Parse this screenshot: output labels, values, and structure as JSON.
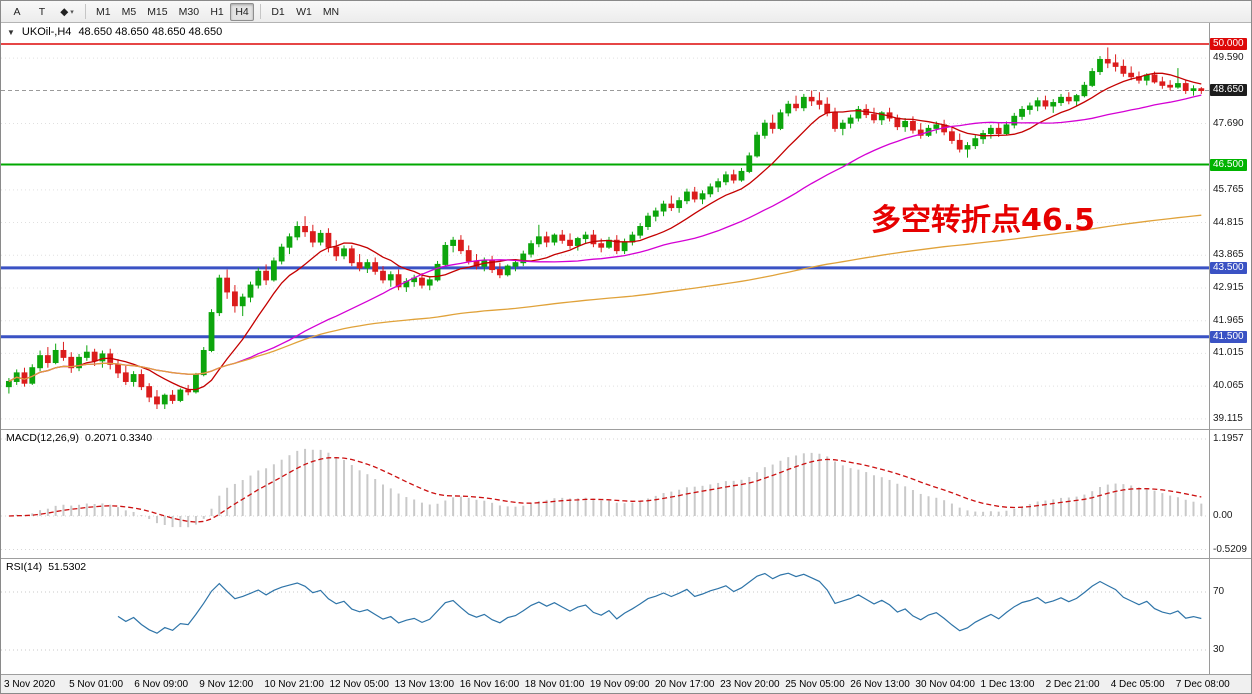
{
  "toolbar": {
    "tools": [
      {
        "label": "A"
      },
      {
        "label": "T"
      },
      {
        "label": "◆"
      }
    ],
    "dropdown_icon": "▾",
    "timeframes": [
      "M1",
      "M5",
      "M15",
      "M30",
      "H1",
      "H4",
      "D1",
      "W1",
      "MN"
    ],
    "active_timeframe": "H4"
  },
  "chart": {
    "collapse_icon": "▼",
    "title": "UKOil-,H4",
    "ohlc_text": "48.650 48.650 48.650 48.650",
    "annotation": {
      "text": "多空转折点46.5",
      "color": "#e60000"
    }
  },
  "chart_data": {
    "type": "candlestick",
    "symbol": "UKOil-",
    "timeframe": "H4",
    "colors": {
      "up": "#0da50d",
      "down": "#db1c1c",
      "grid": "#e0e0e0",
      "price_line": "#9a9a9a"
    },
    "current_price": {
      "value": 48.65,
      "label": "48.650"
    },
    "levels": [
      {
        "value": 50.0,
        "label": "50.000",
        "color": "#dd0808",
        "width": 1.5
      },
      {
        "value": 46.5,
        "label": "46.500",
        "color": "#00a800",
        "width": 2
      },
      {
        "value": 43.5,
        "label": "43.500",
        "color": "#3a52c4",
        "width": 3
      },
      {
        "value": 41.5,
        "label": "41.500",
        "color": "#3a52c4",
        "width": 3
      }
    ],
    "price_axis": [
      {
        "label": "50.000",
        "value": 50.0,
        "type": "red"
      },
      {
        "label": "49.590",
        "value": 49.59,
        "type": "tick"
      },
      {
        "label": "48.650",
        "value": 48.65,
        "type": "price"
      },
      {
        "label": "47.690",
        "value": 47.69,
        "type": "tick"
      },
      {
        "label": "46.500",
        "value": 46.5,
        "type": "green"
      },
      {
        "label": "45.765",
        "value": 45.765,
        "type": "tick"
      },
      {
        "label": "44.815",
        "value": 44.815,
        "type": "tick"
      },
      {
        "label": "43.865",
        "value": 43.865,
        "type": "tick"
      },
      {
        "label": "43.500",
        "value": 43.5,
        "type": "blue"
      },
      {
        "label": "42.915",
        "value": 42.915,
        "type": "tick"
      },
      {
        "label": "41.965",
        "value": 41.965,
        "type": "tick"
      },
      {
        "label": "41.500",
        "value": 41.5,
        "type": "blue"
      },
      {
        "label": "41.015",
        "value": 41.015,
        "type": "tick"
      },
      {
        "label": "40.065",
        "value": 40.065,
        "type": "tick"
      },
      {
        "label": "39.115",
        "value": 39.115,
        "type": "tick"
      }
    ],
    "moving_averages": [
      {
        "period": 10,
        "color": "#c40000"
      },
      {
        "period": 30,
        "color": "#d400d4"
      },
      {
        "period": 999,
        "color": "#e0a23a"
      }
    ],
    "indicators": {
      "macd": {
        "label": "MACD(12,26,9)",
        "values_text": "0.2071 0.3340",
        "fast": 12,
        "slow": 26,
        "signal": 9,
        "histogram_color": "#c9c9c9",
        "signal_color": "#cc1111",
        "axis": [
          {
            "label": "1.1957",
            "value": 1.1957
          },
          {
            "label": "0.00",
            "value": 0
          },
          {
            "label": "-0.5209",
            "value": -0.5209
          }
        ]
      },
      "rsi": {
        "label": "RSI(14)",
        "value_text": "51.5302",
        "period": 14,
        "line_color": "#2e74a8",
        "axis": [
          {
            "label": "70",
            "value": 70
          },
          {
            "label": "30",
            "value": 30
          }
        ]
      }
    },
    "time_axis": [
      "3 Nov 2020",
      "5 Nov 01:00",
      "6 Nov 09:00",
      "9 Nov 12:00",
      "10 Nov 21:00",
      "12 Nov 05:00",
      "13 Nov 13:00",
      "16 Nov 16:00",
      "18 Nov 01:00",
      "19 Nov 09:00",
      "20 Nov 17:00",
      "23 Nov 20:00",
      "25 Nov 05:00",
      "26 Nov 13:00",
      "30 Nov 04:00",
      "1 Dec 13:00",
      "2 Dec 21:00",
      "4 Dec 05:00",
      "7 Dec 08:00"
    ],
    "candles": [
      [
        40.05,
        40.3,
        39.85,
        40.2
      ],
      [
        40.2,
        40.55,
        40.1,
        40.45
      ],
      [
        40.45,
        40.6,
        40.05,
        40.15
      ],
      [
        40.15,
        40.7,
        40.1,
        40.6
      ],
      [
        40.6,
        41.1,
        40.5,
        40.95
      ],
      [
        40.95,
        41.2,
        40.6,
        40.75
      ],
      [
        40.75,
        41.3,
        40.7,
        41.1
      ],
      [
        41.1,
        41.35,
        40.8,
        40.9
      ],
      [
        40.9,
        41.05,
        40.45,
        40.6
      ],
      [
        40.6,
        41.0,
        40.5,
        40.9
      ],
      [
        40.9,
        41.25,
        40.8,
        41.05
      ],
      [
        41.05,
        41.15,
        40.65,
        40.8
      ],
      [
        40.8,
        41.1,
        40.6,
        41.0
      ],
      [
        41.0,
        41.15,
        40.55,
        40.7
      ],
      [
        40.7,
        40.85,
        40.3,
        40.45
      ],
      [
        40.45,
        40.65,
        40.1,
        40.2
      ],
      [
        40.2,
        40.5,
        40.05,
        40.4
      ],
      [
        40.4,
        40.55,
        39.95,
        40.05
      ],
      [
        40.05,
        40.15,
        39.6,
        39.75
      ],
      [
        39.75,
        39.95,
        39.4,
        39.55
      ],
      [
        39.55,
        39.85,
        39.4,
        39.8
      ],
      [
        39.8,
        39.95,
        39.55,
        39.65
      ],
      [
        39.65,
        40.0,
        39.6,
        39.95
      ],
      [
        39.95,
        40.1,
        39.8,
        39.9
      ],
      [
        39.9,
        40.45,
        39.85,
        40.4
      ],
      [
        40.4,
        41.2,
        40.35,
        41.1
      ],
      [
        41.1,
        42.3,
        41.05,
        42.2
      ],
      [
        42.2,
        43.3,
        42.1,
        43.2
      ],
      [
        43.2,
        43.45,
        42.6,
        42.8
      ],
      [
        42.8,
        43.0,
        42.2,
        42.4
      ],
      [
        42.4,
        42.75,
        42.1,
        42.65
      ],
      [
        42.65,
        43.1,
        42.5,
        43.0
      ],
      [
        43.0,
        43.5,
        42.9,
        43.4
      ],
      [
        43.4,
        43.6,
        43.0,
        43.15
      ],
      [
        43.15,
        43.8,
        43.1,
        43.7
      ],
      [
        43.7,
        44.2,
        43.6,
        44.1
      ],
      [
        44.1,
        44.5,
        43.9,
        44.4
      ],
      [
        44.4,
        44.85,
        44.3,
        44.7
      ],
      [
        44.7,
        45.0,
        44.4,
        44.55
      ],
      [
        44.55,
        44.75,
        44.1,
        44.25
      ],
      [
        44.25,
        44.6,
        44.15,
        44.5
      ],
      [
        44.5,
        44.65,
        43.95,
        44.1
      ],
      [
        44.1,
        44.3,
        43.7,
        43.85
      ],
      [
        43.85,
        44.15,
        43.75,
        44.05
      ],
      [
        44.05,
        44.15,
        43.55,
        43.65
      ],
      [
        43.65,
        43.9,
        43.4,
        43.5
      ],
      [
        43.5,
        43.75,
        43.35,
        43.65
      ],
      [
        43.65,
        43.8,
        43.3,
        43.4
      ],
      [
        43.4,
        43.55,
        43.05,
        43.15
      ],
      [
        43.15,
        43.4,
        42.95,
        43.3
      ],
      [
        43.3,
        43.45,
        42.85,
        42.95
      ],
      [
        42.95,
        43.2,
        42.8,
        43.1
      ],
      [
        43.1,
        43.3,
        42.95,
        43.2
      ],
      [
        43.2,
        43.35,
        42.9,
        43.0
      ],
      [
        43.0,
        43.25,
        42.85,
        43.15
      ],
      [
        43.15,
        43.7,
        43.1,
        43.6
      ],
      [
        43.6,
        44.25,
        43.55,
        44.15
      ],
      [
        44.15,
        44.4,
        43.95,
        44.3
      ],
      [
        44.3,
        44.45,
        43.9,
        44.0
      ],
      [
        44.0,
        44.15,
        43.6,
        43.7
      ],
      [
        43.7,
        43.9,
        43.45,
        43.55
      ],
      [
        43.55,
        43.8,
        43.4,
        43.7
      ],
      [
        43.7,
        43.85,
        43.35,
        43.45
      ],
      [
        43.45,
        43.65,
        43.2,
        43.3
      ],
      [
        43.3,
        43.6,
        43.25,
        43.55
      ],
      [
        43.55,
        43.75,
        43.4,
        43.65
      ],
      [
        43.65,
        44.0,
        43.55,
        43.9
      ],
      [
        43.9,
        44.3,
        43.8,
        44.2
      ],
      [
        44.2,
        44.75,
        44.1,
        44.4
      ],
      [
        44.4,
        44.55,
        44.1,
        44.25
      ],
      [
        44.25,
        44.5,
        44.15,
        44.45
      ],
      [
        44.45,
        44.6,
        44.2,
        44.3
      ],
      [
        44.3,
        44.5,
        44.05,
        44.15
      ],
      [
        44.15,
        44.4,
        44.0,
        44.35
      ],
      [
        44.35,
        44.55,
        44.2,
        44.45
      ],
      [
        44.45,
        44.6,
        44.1,
        44.2
      ],
      [
        44.2,
        44.35,
        43.95,
        44.1
      ],
      [
        44.1,
        44.4,
        44.05,
        44.3
      ],
      [
        44.3,
        44.45,
        43.9,
        44.0
      ],
      [
        44.0,
        44.35,
        43.9,
        44.25
      ],
      [
        44.25,
        44.55,
        44.15,
        44.45
      ],
      [
        44.45,
        44.8,
        44.35,
        44.7
      ],
      [
        44.7,
        45.1,
        44.6,
        45.0
      ],
      [
        45.0,
        45.25,
        44.85,
        45.15
      ],
      [
        45.15,
        45.45,
        45.0,
        45.35
      ],
      [
        45.35,
        45.6,
        45.15,
        45.25
      ],
      [
        45.25,
        45.55,
        45.1,
        45.45
      ],
      [
        45.45,
        45.8,
        45.35,
        45.7
      ],
      [
        45.7,
        45.85,
        45.4,
        45.5
      ],
      [
        45.5,
        45.75,
        45.35,
        45.65
      ],
      [
        45.65,
        45.95,
        45.55,
        45.85
      ],
      [
        45.85,
        46.1,
        45.7,
        46.0
      ],
      [
        46.0,
        46.3,
        45.9,
        46.2
      ],
      [
        46.2,
        46.35,
        45.95,
        46.05
      ],
      [
        46.05,
        46.4,
        46.0,
        46.3
      ],
      [
        46.3,
        46.85,
        46.25,
        46.75
      ],
      [
        46.75,
        47.45,
        46.7,
        47.35
      ],
      [
        47.35,
        47.8,
        47.25,
        47.7
      ],
      [
        47.7,
        47.95,
        47.4,
        47.55
      ],
      [
        47.55,
        48.1,
        47.5,
        48.0
      ],
      [
        48.0,
        48.35,
        47.9,
        48.25
      ],
      [
        48.25,
        48.5,
        48.05,
        48.15
      ],
      [
        48.15,
        48.55,
        48.05,
        48.45
      ],
      [
        48.45,
        48.65,
        48.2,
        48.35
      ],
      [
        48.35,
        48.6,
        48.1,
        48.25
      ],
      [
        48.25,
        48.45,
        47.9,
        48.0
      ],
      [
        48.0,
        48.15,
        47.45,
        47.55
      ],
      [
        47.55,
        47.8,
        47.35,
        47.7
      ],
      [
        47.7,
        47.95,
        47.55,
        47.85
      ],
      [
        47.85,
        48.2,
        47.75,
        48.1
      ],
      [
        48.1,
        48.25,
        47.85,
        47.95
      ],
      [
        47.95,
        48.15,
        47.7,
        47.8
      ],
      [
        47.8,
        48.05,
        47.65,
        48.0
      ],
      [
        48.0,
        48.15,
        47.75,
        47.85
      ],
      [
        47.85,
        47.95,
        47.5,
        47.6
      ],
      [
        47.6,
        47.85,
        47.45,
        47.75
      ],
      [
        47.75,
        47.9,
        47.4,
        47.5
      ],
      [
        47.5,
        47.7,
        47.25,
        47.35
      ],
      [
        47.35,
        47.65,
        47.3,
        47.55
      ],
      [
        47.55,
        47.75,
        47.4,
        47.65
      ],
      [
        47.65,
        47.8,
        47.35,
        47.45
      ],
      [
        47.45,
        47.6,
        47.1,
        47.2
      ],
      [
        47.2,
        47.4,
        46.85,
        46.95
      ],
      [
        46.95,
        47.15,
        46.7,
        47.05
      ],
      [
        47.05,
        47.35,
        46.95,
        47.25
      ],
      [
        47.25,
        47.5,
        47.1,
        47.4
      ],
      [
        47.4,
        47.65,
        47.25,
        47.55
      ],
      [
        47.55,
        47.7,
        47.3,
        47.4
      ],
      [
        47.4,
        47.75,
        47.35,
        47.65
      ],
      [
        47.65,
        48.0,
        47.55,
        47.9
      ],
      [
        47.9,
        48.2,
        47.8,
        48.1
      ],
      [
        48.1,
        48.3,
        47.95,
        48.2
      ],
      [
        48.2,
        48.45,
        48.05,
        48.35
      ],
      [
        48.35,
        48.5,
        48.1,
        48.2
      ],
      [
        48.2,
        48.4,
        48.0,
        48.3
      ],
      [
        48.3,
        48.55,
        48.2,
        48.45
      ],
      [
        48.45,
        48.6,
        48.25,
        48.35
      ],
      [
        48.35,
        48.55,
        48.2,
        48.5
      ],
      [
        48.5,
        48.9,
        48.45,
        48.8
      ],
      [
        48.8,
        49.3,
        48.75,
        49.2
      ],
      [
        49.2,
        49.65,
        49.1,
        49.55
      ],
      [
        49.55,
        49.9,
        49.3,
        49.45
      ],
      [
        49.45,
        49.7,
        49.2,
        49.35
      ],
      [
        49.35,
        49.55,
        49.05,
        49.15
      ],
      [
        49.15,
        49.35,
        48.95,
        49.05
      ],
      [
        49.05,
        49.2,
        48.85,
        48.95
      ],
      [
        48.95,
        49.15,
        48.8,
        49.1
      ],
      [
        49.1,
        49.2,
        48.85,
        48.9
      ],
      [
        48.9,
        49.05,
        48.7,
        48.8
      ],
      [
        48.8,
        48.95,
        48.65,
        48.75
      ],
      [
        48.75,
        49.3,
        48.7,
        48.85
      ],
      [
        48.85,
        48.95,
        48.55,
        48.65
      ],
      [
        48.65,
        48.8,
        48.5,
        48.7
      ],
      [
        48.7,
        48.75,
        48.55,
        48.65
      ]
    ]
  }
}
